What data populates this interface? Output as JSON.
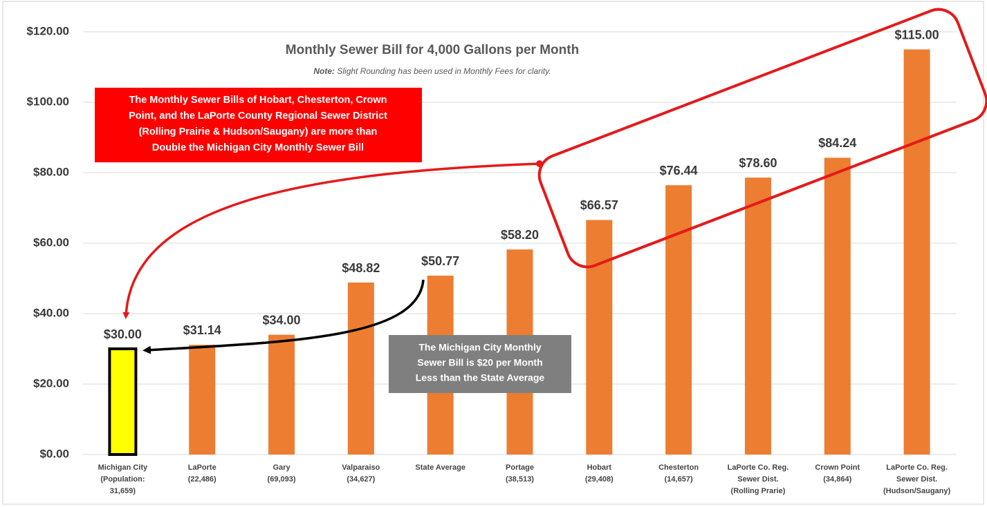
{
  "chart_data": {
    "type": "bar",
    "title": "Monthly Sewer Bill for 4,000 Gallons per Month",
    "note_label": "Note:",
    "note": "Slight Rounding has been used in Monthly Fees for clarity.",
    "categories": [
      "Michigan City\n(Population:\n31,659)",
      "LaPorte\n(22,486)",
      "Gary\n(69,093)",
      "Valparaiso\n(34,627)",
      "State Average",
      "Portage\n(38,513)",
      "Hobart\n(29,408)",
      "Chesterton\n(14,657)",
      "LaPorte Co. Reg.\nSewer Dist.\n(Rolling Prarie)",
      "Crown Point\n(34,864)",
      "LaPorte Co. Reg.\nSewer Dist.\n(Hudson/Saugany)"
    ],
    "values": [
      30,
      31.14,
      34,
      48.82,
      50.77,
      58.2,
      66.57,
      76.44,
      78.6,
      84.24,
      115
    ],
    "value_labels": [
      "$30.00",
      "$31.14",
      "$34.00",
      "$48.82",
      "$50.77",
      "$58.20",
      "$66.57",
      "$76.44",
      "$78.60",
      "$84.24",
      "$115.00"
    ],
    "colors": [
      "#ffff00",
      "#ed7d31",
      "#ed7d31",
      "#ed7d31",
      "#ed7d31",
      "#ed7d31",
      "#ed7d31",
      "#ed7d31",
      "#ed7d31",
      "#ed7d31",
      "#ed7d31"
    ],
    "ylim": [
      0,
      120
    ],
    "yticks": [
      {
        "value": 0,
        "label": "$0.00"
      },
      {
        "value": 20,
        "label": "$20.00"
      },
      {
        "value": 40,
        "label": "$40.00"
      },
      {
        "value": 60,
        "label": "$60.00"
      },
      {
        "value": 80,
        "label": "$80.00"
      },
      {
        "value": 100,
        "label": "$100.00"
      },
      {
        "value": 120,
        "label": "$120.00"
      }
    ],
    "grid": true,
    "annotations": [
      {
        "lines": [
          "The Monthly Sewer Bills of Hobart, Chesterton, Crown",
          "Point, and the LaPorte County Regional Sewer District",
          "(Rolling Prairie & Hudson/Saugany) are more than",
          "Double the Michigan City Monthly Sewer Bill"
        ]
      },
      {
        "lines": [
          "The Michigan City Monthly",
          "Sewer Bill is $20 per Month",
          "Less than the State Average"
        ]
      }
    ]
  }
}
